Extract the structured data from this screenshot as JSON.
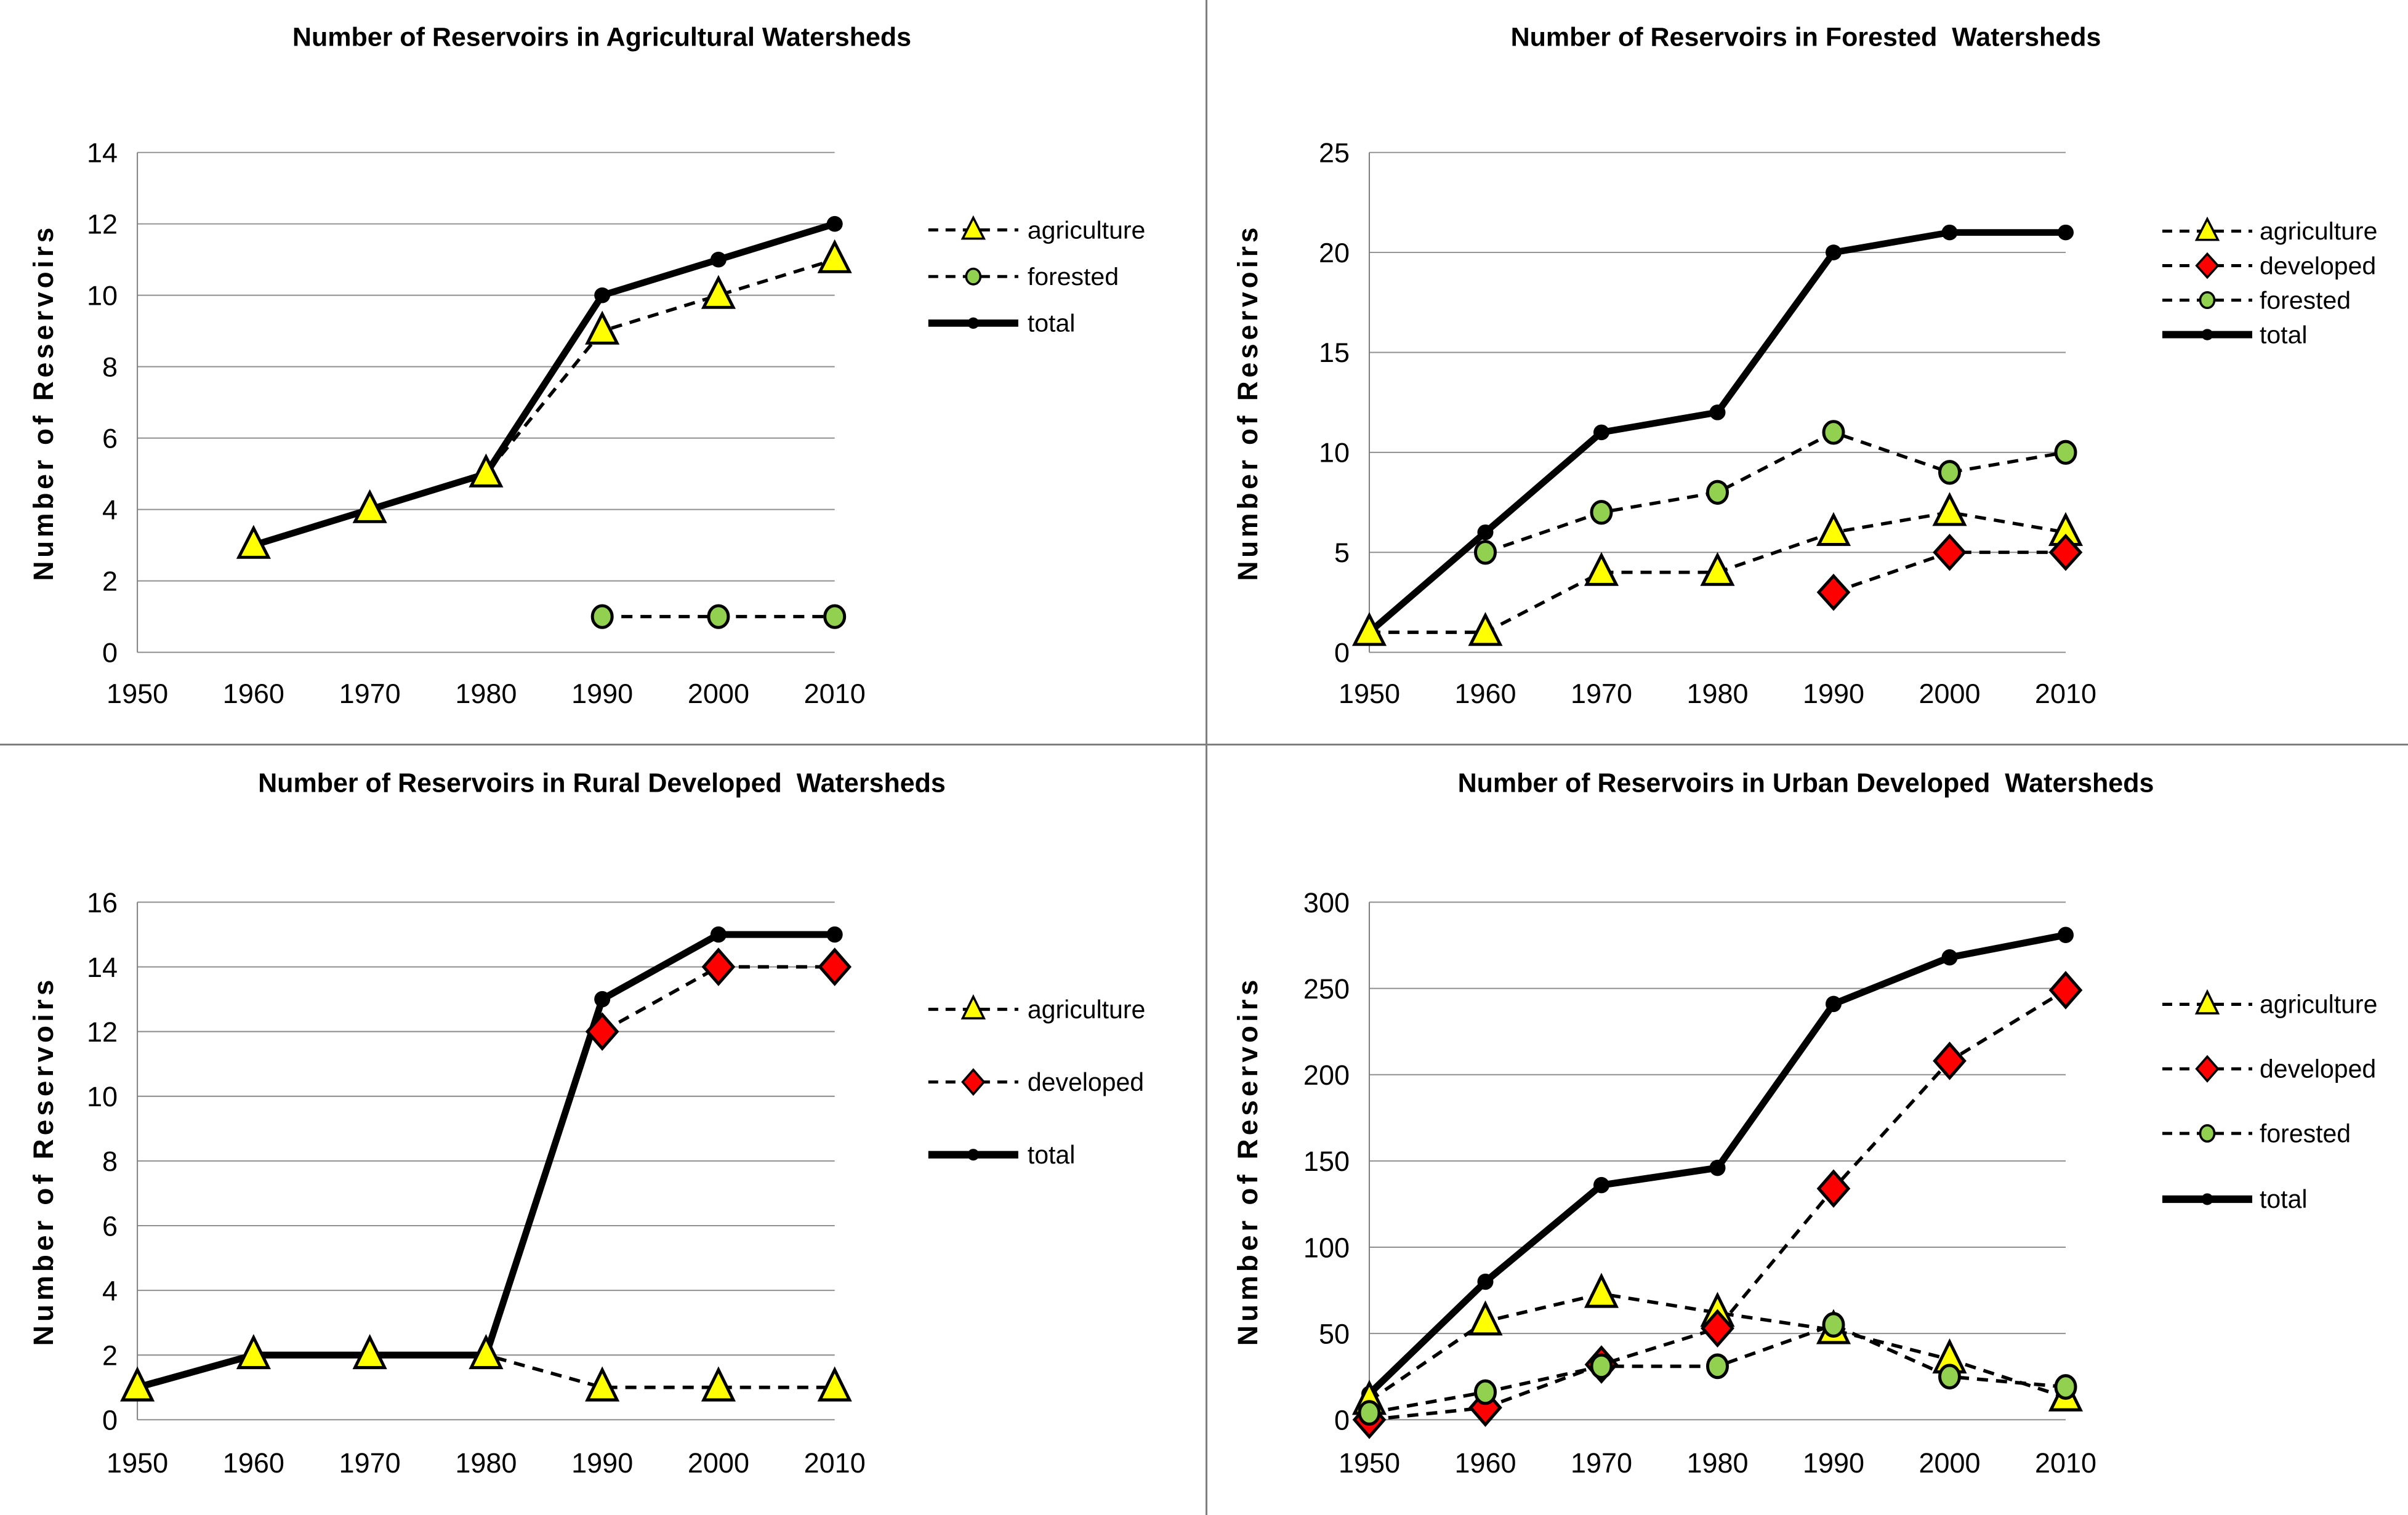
{
  "page": {
    "background": "#ffffff",
    "divider_color": "#7f7f7f",
    "grid_color": "#8f8f8f",
    "axis_color": "#7f7f7f",
    "series_colors": {
      "agriculture": "#FFFF00",
      "developed": "#FF0000",
      "forested": "#92D050",
      "total": "#000000"
    }
  },
  "chart_data": [
    {
      "type": "line",
      "title": "Number of Reservoirs in Agricultural Watersheds",
      "ylabel": "Number of Reservoirs",
      "ylim": [
        0,
        14
      ],
      "ytick_step": 2,
      "grid": "horizontal",
      "legend_position": "right",
      "categories": [
        "1950",
        "1960",
        "1970",
        "1980",
        "1990",
        "2000",
        "2010"
      ],
      "series": [
        {
          "name": "agriculture",
          "marker": "triangle",
          "line": "dashed",
          "color": "#FFFF00",
          "values": [
            null,
            3,
            4,
            5,
            9,
            10,
            11
          ]
        },
        {
          "name": "forested",
          "marker": "circle",
          "line": "dashed",
          "color": "#92D050",
          "values": [
            null,
            null,
            null,
            null,
            1,
            1,
            1
          ]
        },
        {
          "name": "total",
          "marker": "dot",
          "line": "solid",
          "color": "#000000",
          "values": [
            null,
            3,
            4,
            5,
            10,
            11,
            12
          ]
        }
      ]
    },
    {
      "type": "line",
      "title": "Number of Reservoirs in Forested  Watersheds",
      "ylabel": "Number of Reservoirs",
      "ylim": [
        0,
        25
      ],
      "ytick_step": 5,
      "grid": "horizontal",
      "legend_position": "right",
      "categories": [
        "1950",
        "1960",
        "1970",
        "1980",
        "1990",
        "2000",
        "2010"
      ],
      "series": [
        {
          "name": "agriculture",
          "marker": "triangle",
          "line": "dashed",
          "color": "#FFFF00",
          "values": [
            1,
            1,
            4,
            4,
            6,
            7,
            6
          ]
        },
        {
          "name": "developed",
          "marker": "diamond",
          "line": "dashed",
          "color": "#FF0000",
          "values": [
            null,
            null,
            null,
            null,
            3,
            5,
            5
          ]
        },
        {
          "name": "forested",
          "marker": "circle",
          "line": "dashed",
          "color": "#92D050",
          "values": [
            null,
            5,
            7,
            8,
            11,
            9,
            10
          ]
        },
        {
          "name": "total",
          "marker": "dot",
          "line": "solid",
          "color": "#000000",
          "values": [
            1,
            6,
            11,
            12,
            20,
            21,
            21
          ]
        }
      ]
    },
    {
      "type": "line",
      "title": "Number of Reservoirs in Rural Developed  Watersheds",
      "ylabel": "Number of Reservoirs",
      "ylim": [
        0,
        16
      ],
      "ytick_step": 2,
      "grid": "horizontal",
      "legend_position": "right",
      "categories": [
        "1950",
        "1960",
        "1970",
        "1980",
        "1990",
        "2000",
        "2010"
      ],
      "series": [
        {
          "name": "agriculture",
          "marker": "triangle",
          "line": "dashed",
          "color": "#FFFF00",
          "values": [
            1,
            2,
            2,
            2,
            1,
            1,
            1
          ]
        },
        {
          "name": "developed",
          "marker": "diamond",
          "line": "dashed",
          "color": "#FF0000",
          "values": [
            null,
            null,
            null,
            null,
            12,
            14,
            14
          ]
        },
        {
          "name": "total",
          "marker": "dot",
          "line": "solid",
          "color": "#000000",
          "values": [
            1,
            2,
            2,
            2,
            13,
            15,
            15
          ]
        }
      ]
    },
    {
      "type": "line",
      "title": "Number of Reservoirs in Urban Developed  Watersheds",
      "ylabel": "Number of Reservoirs",
      "ylim": [
        0,
        300
      ],
      "ytick_step": 50,
      "grid": "horizontal",
      "legend_position": "right",
      "categories": [
        "1950",
        "1960",
        "1970",
        "1980",
        "1990",
        "2000",
        "2010"
      ],
      "series": [
        {
          "name": "agriculture",
          "marker": "triangle",
          "line": "dashed",
          "color": "#FFFF00",
          "values": [
            11,
            57,
            73,
            62,
            52,
            35,
            13
          ]
        },
        {
          "name": "developed",
          "marker": "diamond",
          "line": "dashed",
          "color": "#FF0000",
          "values": [
            0,
            7,
            32,
            53,
            134,
            208,
            249
          ]
        },
        {
          "name": "forested",
          "marker": "circle",
          "line": "dashed",
          "color": "#92D050",
          "values": [
            4,
            16,
            31,
            31,
            55,
            25,
            19
          ]
        },
        {
          "name": "total",
          "marker": "dot",
          "line": "solid",
          "color": "#000000",
          "values": [
            15,
            80,
            136,
            146,
            241,
            268,
            281
          ]
        }
      ]
    }
  ]
}
